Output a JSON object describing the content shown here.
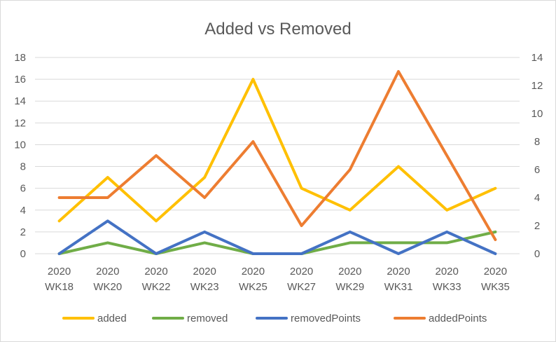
{
  "chart_data": {
    "type": "line",
    "title": "Added vs Removed",
    "categories": [
      [
        "2020",
        "WK18"
      ],
      [
        "2020",
        "WK20"
      ],
      [
        "2020",
        "WK22"
      ],
      [
        "2020",
        "WK23"
      ],
      [
        "2020",
        "WK25"
      ],
      [
        "2020",
        "WK27"
      ],
      [
        "2020",
        "WK29"
      ],
      [
        "2020",
        "WK31"
      ],
      [
        "2020",
        "WK33"
      ],
      [
        "2020",
        "WK35"
      ]
    ],
    "y_left": {
      "min": 0,
      "max": 18,
      "ticks": [
        "0",
        "2",
        "4",
        "6",
        "8",
        "10",
        "12",
        "14",
        "16",
        "18"
      ]
    },
    "y_right": {
      "min": 0,
      "max": 14,
      "ticks": [
        "0",
        "2",
        "4",
        "6",
        "8",
        "10",
        "12",
        "14"
      ]
    },
    "grid": true,
    "legend_position": "bottom",
    "series": [
      {
        "name": "added",
        "axis": "left",
        "color": "#FFC000",
        "values": [
          3,
          7,
          3,
          7,
          16,
          6,
          4,
          8,
          4,
          6
        ]
      },
      {
        "name": "removed",
        "axis": "left",
        "color": "#70AD47",
        "values": [
          0,
          1,
          0,
          1,
          0,
          0,
          1,
          1,
          1,
          2
        ]
      },
      {
        "name": "removedPoints",
        "axis": "left",
        "color": "#4472C4",
        "values": [
          0,
          3,
          0,
          2,
          0,
          0,
          2,
          0,
          2,
          0
        ]
      },
      {
        "name": "addedPoints",
        "axis": "right",
        "color": "#ED7D31",
        "values": [
          4,
          4,
          7,
          4,
          8,
          2,
          6,
          13,
          7,
          1
        ]
      }
    ]
  }
}
